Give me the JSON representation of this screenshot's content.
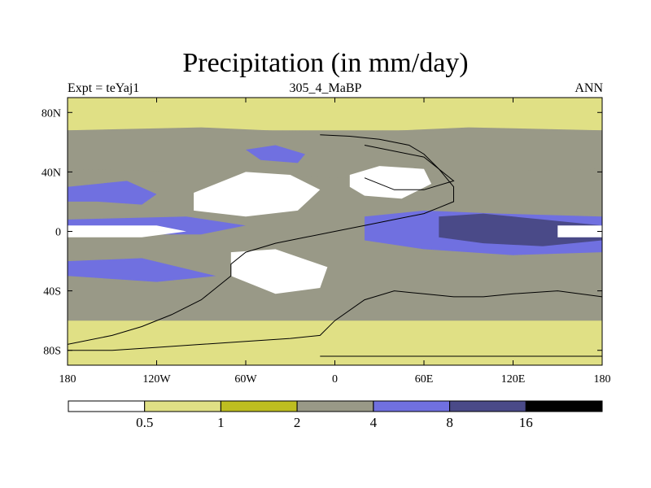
{
  "chart_data": {
    "type": "heatmap",
    "title": "Precipitation (in mm/day)",
    "left_string": "Expt = teYaj1",
    "center_string": "305_4_MaBP",
    "right_string": "ANN",
    "x_ticks": [
      {
        "value": -180,
        "label": "180"
      },
      {
        "value": -120,
        "label": "120W"
      },
      {
        "value": -60,
        "label": "60W"
      },
      {
        "value": 0,
        "label": "0"
      },
      {
        "value": 60,
        "label": "60E"
      },
      {
        "value": 120,
        "label": "120E"
      },
      {
        "value": 180,
        "label": "180"
      }
    ],
    "y_ticks": [
      {
        "value": 80,
        "label": "80N"
      },
      {
        "value": 40,
        "label": "40N"
      },
      {
        "value": 0,
        "label": "0"
      },
      {
        "value": -40,
        "label": "40S"
      },
      {
        "value": -80,
        "label": "80S"
      }
    ],
    "xlim": [
      -180,
      180
    ],
    "ylim": [
      -90,
      90
    ],
    "levels": [
      0.5,
      1,
      2,
      4,
      8,
      16
    ],
    "level_labels": [
      "0.5",
      "1",
      "2",
      "4",
      "8",
      "16"
    ],
    "colors": [
      "#ffffff",
      "#e0e085",
      "#bebe20",
      "#999987",
      "#7070e0",
      "#4a4a88",
      "#000000"
    ],
    "fields": [
      {
        "name": "polar-band-north",
        "level": 1,
        "lon": [
          -180,
          180,
          180,
          -180
        ],
        "lat": [
          90,
          90,
          68,
          68
        ]
      },
      {
        "name": "mid-lat-north",
        "level": 3,
        "lon": [
          -180,
          -90,
          0,
          90,
          180,
          180,
          90,
          0,
          -90,
          -180
        ],
        "lat": [
          68,
          70,
          66,
          70,
          68,
          42,
          40,
          36,
          40,
          42
        ]
      },
      {
        "name": "storm-track-north-pacific",
        "level": 4,
        "lon": [
          -180,
          -140,
          -120,
          -130,
          -160,
          -180
        ],
        "lat": [
          30,
          34,
          25,
          18,
          20,
          20
        ]
      },
      {
        "name": "storm-track-north-atlantic",
        "level": 4,
        "lon": [
          -60,
          -40,
          -20,
          -25,
          -50
        ],
        "lat": [
          55,
          58,
          52,
          46,
          48
        ]
      },
      {
        "name": "itcz-west",
        "level": 4,
        "lon": [
          -180,
          -100,
          -60,
          -90,
          -180
        ],
        "lat": [
          8,
          10,
          4,
          -2,
          -2
        ]
      },
      {
        "name": "itcz-indopacific",
        "level": 4,
        "lon": [
          20,
          60,
          110,
          180,
          180,
          120,
          60,
          20
        ],
        "lat": [
          10,
          14,
          12,
          10,
          -14,
          -16,
          -12,
          -6
        ]
      },
      {
        "name": "warm-pool",
        "level": 5,
        "lon": [
          70,
          100,
          140,
          180,
          180,
          140,
          100,
          70
        ],
        "lat": [
          10,
          12,
          8,
          4,
          -6,
          -10,
          -8,
          -4
        ]
      },
      {
        "name": "arid-north-pangea",
        "level": 0,
        "lon": [
          -95,
          -60,
          -30,
          -10,
          -25,
          -60,
          -95
        ],
        "lat": [
          26,
          40,
          38,
          28,
          14,
          10,
          14
        ]
      },
      {
        "name": "arid-north-east",
        "level": 0,
        "lon": [
          10,
          30,
          60,
          65,
          45,
          20,
          10
        ],
        "lat": [
          38,
          44,
          42,
          32,
          22,
          24,
          30
        ]
      },
      {
        "name": "arid-south-pangea",
        "level": 0,
        "lon": [
          -70,
          -40,
          -5,
          -10,
          -40,
          -70
        ],
        "lat": [
          -14,
          -12,
          -24,
          -38,
          -42,
          -30
        ]
      },
      {
        "name": "dry-equatorial-west",
        "level": 0,
        "lon": [
          -180,
          -120,
          -100,
          -130,
          -180
        ],
        "lat": [
          4,
          4,
          0,
          -4,
          -4
        ]
      },
      {
        "name": "dry-equatorial-east",
        "level": 0,
        "lon": [
          150,
          180,
          180,
          150
        ],
        "lat": [
          4,
          4,
          -4,
          -4
        ]
      },
      {
        "name": "southern-storm-track",
        "level": 4,
        "lon": [
          -180,
          -130,
          -80,
          -120,
          -180
        ],
        "lat": [
          -20,
          -18,
          -30,
          -34,
          -30
        ]
      },
      {
        "name": "polar-band-south",
        "level": 1,
        "lon": [
          -180,
          180,
          180,
          -180
        ],
        "lat": [
          -60,
          -60,
          -90,
          -90
        ]
      }
    ],
    "continents": [
      {
        "name": "pangea-outline",
        "lon": [
          -10,
          10,
          30,
          50,
          60,
          70,
          80,
          80,
          70,
          60,
          40,
          20,
          0,
          -20,
          -40,
          -60,
          -70,
          -70,
          -80,
          -90,
          -110,
          -130,
          -150,
          -180,
          -180,
          -150,
          -120,
          -90,
          -60,
          -30,
          -10,
          0,
          20,
          40,
          60,
          80,
          100,
          120,
          150,
          180,
          180,
          150,
          120,
          100,
          80,
          60,
          40,
          20,
          0,
          -10
        ],
        "lat": [
          65,
          64,
          62,
          58,
          52,
          42,
          30,
          20,
          16,
          12,
          8,
          4,
          0,
          -4,
          -8,
          -14,
          -22,
          -30,
          -38,
          -46,
          -56,
          -64,
          -70,
          -76,
          -80,
          -80,
          -78,
          -76,
          -74,
          -72,
          -70,
          -60,
          -46,
          -40,
          -42,
          -44,
          -44,
          -42,
          -40,
          -44,
          -84,
          -84,
          -84,
          -84,
          -84,
          -84,
          -84,
          -84,
          -84,
          -84
        ]
      },
      {
        "name": "north-east-landmass",
        "lon": [
          20,
          60,
          80,
          60,
          40,
          20
        ],
        "lat": [
          58,
          50,
          34,
          28,
          28,
          36
        ]
      }
    ]
  }
}
